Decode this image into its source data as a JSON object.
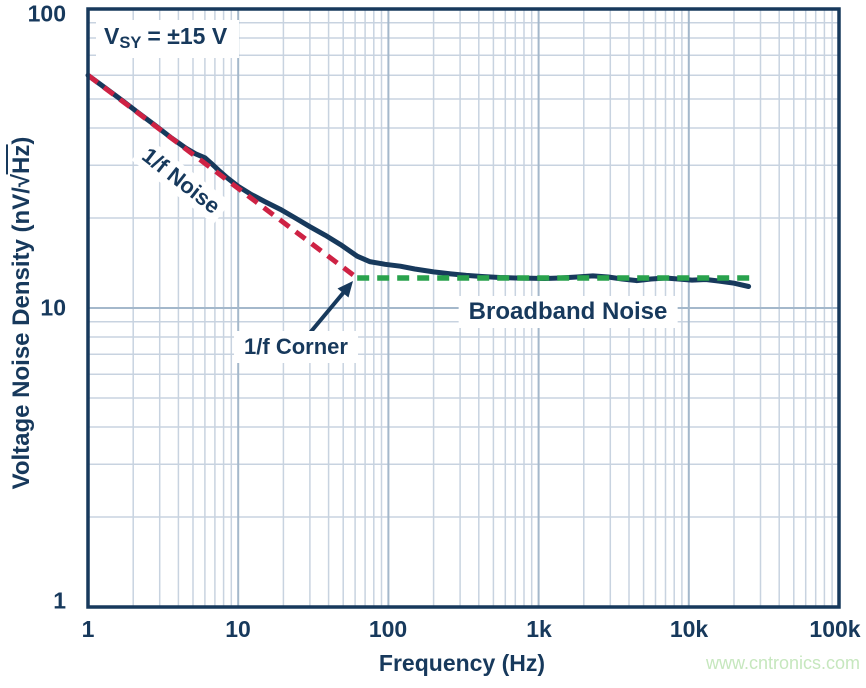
{
  "watermark": {
    "text": "www.cntronics.com"
  },
  "colors": {
    "text_navy": "#17395c",
    "frame": "#17395c",
    "grid_major": "#a4b8cb",
    "grid_minor": "#c8d3e0",
    "measured_curve": "#17395c",
    "one_over_f_asymptote": "#ce2244",
    "broadband_asymptote": "#29a24d",
    "watermark_green": "#c6e7be",
    "label_background": "#ffffff"
  },
  "chart_data": {
    "type": "line",
    "title": "",
    "xlabel": "Frequency (Hz)",
    "ylabel": "Voltage Noise Density (nV/√Hz)",
    "ylabel_parts": {
      "pre": "Voltage Noise Density (nV/",
      "sqrt": "√",
      "radicand": "Hz",
      "post": ")"
    },
    "x_scale": "log",
    "y_scale": "log",
    "xlim": [
      1,
      100000
    ],
    "ylim": [
      1,
      100
    ],
    "grid": "major and minor log gridlines on both axes",
    "legend": "none",
    "x_tick_labels": [
      "1",
      "10",
      "100",
      "1k",
      "10k",
      "100k"
    ],
    "x_tick_values": [
      1,
      10,
      100,
      1000,
      10000,
      100000
    ],
    "y_tick_labels": [
      "1",
      "10",
      "100"
    ],
    "y_tick_values": [
      1,
      10,
      100
    ],
    "annotations": {
      "supply": {
        "base": "V",
        "sub": "SY",
        "value": "= ±15 V"
      },
      "one_over_f_label": "1/f Noise",
      "corner_label": "1/f Corner",
      "broadband_label": "Broadband Noise"
    },
    "corner_frequency_hz": 62,
    "broadband_level_nv_per_sqrthz": 12.6,
    "series": [
      {
        "name": "measured-noise",
        "color": "#17395c",
        "style": "solid",
        "width": 5,
        "points": [
          [
            1,
            60
          ],
          [
            1.3,
            54.5
          ],
          [
            1.7,
            49.3
          ],
          [
            2.2,
            44.7
          ],
          [
            2.8,
            40.8
          ],
          [
            3.6,
            37.0
          ],
          [
            4.5,
            34.2
          ],
          [
            5.2,
            32.8
          ],
          [
            6,
            31.8
          ],
          [
            6.6,
            30.5
          ],
          [
            7.4,
            28.9
          ],
          [
            8.5,
            27.2
          ],
          [
            10,
            25.5
          ],
          [
            12,
            24.1
          ],
          [
            15,
            22.7
          ],
          [
            19,
            21.4
          ],
          [
            24,
            20.0
          ],
          [
            30,
            18.7
          ],
          [
            38,
            17.5
          ],
          [
            48,
            16.3
          ],
          [
            62,
            14.9
          ],
          [
            75,
            14.3
          ],
          [
            95,
            14.0
          ],
          [
            120,
            13.8
          ],
          [
            150,
            13.5
          ],
          [
            200,
            13.2
          ],
          [
            260,
            13.0
          ],
          [
            330,
            12.85
          ],
          [
            420,
            12.75
          ],
          [
            550,
            12.65
          ],
          [
            700,
            12.6
          ],
          [
            900,
            12.58
          ],
          [
            1100,
            12.55
          ],
          [
            1400,
            12.6
          ],
          [
            1800,
            12.7
          ],
          [
            2300,
            12.8
          ],
          [
            2900,
            12.7
          ],
          [
            3600,
            12.5
          ],
          [
            4500,
            12.35
          ],
          [
            5600,
            12.5
          ],
          [
            7000,
            12.6
          ],
          [
            8500,
            12.5
          ],
          [
            10500,
            12.4
          ],
          [
            13000,
            12.45
          ],
          [
            16000,
            12.3
          ],
          [
            20000,
            12.1
          ],
          [
            25000,
            11.8
          ]
        ]
      },
      {
        "name": "one-over-f-asymptote",
        "color": "#ce2244",
        "style": "dashed",
        "width": 5,
        "points": [
          [
            1,
            60
          ],
          [
            62,
            12.6
          ]
        ]
      },
      {
        "name": "broadband-asymptote",
        "color": "#29a24d",
        "style": "dashed",
        "width": 5.5,
        "points": [
          [
            62,
            12.6
          ],
          [
            28000,
            12.6
          ]
        ]
      }
    ]
  }
}
